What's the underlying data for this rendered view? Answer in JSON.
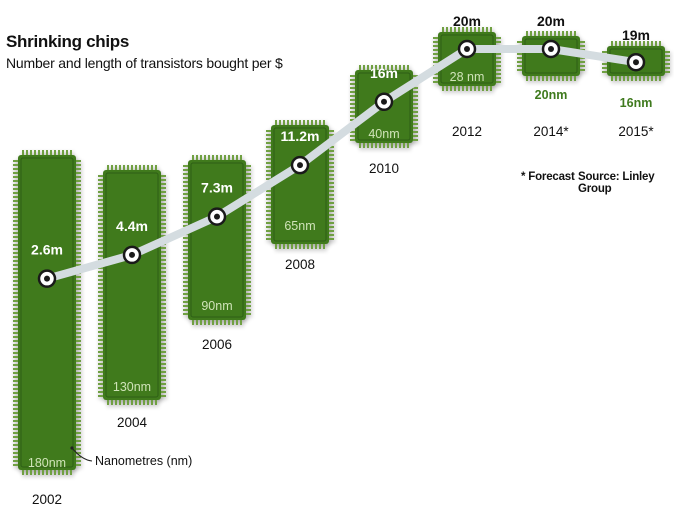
{
  "chart_data": {
    "type": "line",
    "title": "Shrinking chips",
    "subtitle": "Number and length of transistors bought per $",
    "categories": [
      "2002",
      "2004",
      "2006",
      "2008",
      "2010",
      "2012",
      "2014*",
      "2015*"
    ],
    "series": [
      {
        "values": [
          2.6,
          4.4,
          7.3,
          11.2,
          16,
          20,
          20,
          19
        ],
        "value_labels": [
          "2.6m",
          "4.4m",
          "7.3m",
          "11.2m",
          "16m",
          "20m",
          "20m",
          "19m"
        ]
      }
    ],
    "node_sizes_nm": [
      180,
      130,
      90,
      65,
      40,
      28,
      20,
      16
    ],
    "node_labels": [
      "180nm",
      "130nm",
      "90nm",
      "65nm",
      "40nm",
      "28 nm",
      "20nm",
      "16nm"
    ],
    "annotation": "Nanometres (nm)",
    "footnotes": {
      "forecast": "* Forecast",
      "source": "Source: Linley Group"
    },
    "colors": {
      "chip_fill": "#3f7a1e",
      "chip_dark": "#2d5f12",
      "pin": "#6fa043",
      "line": "#d4dce0",
      "node_text": "#cfe3b8",
      "label_text": "#ffffff",
      "year_text": "#111111"
    }
  }
}
